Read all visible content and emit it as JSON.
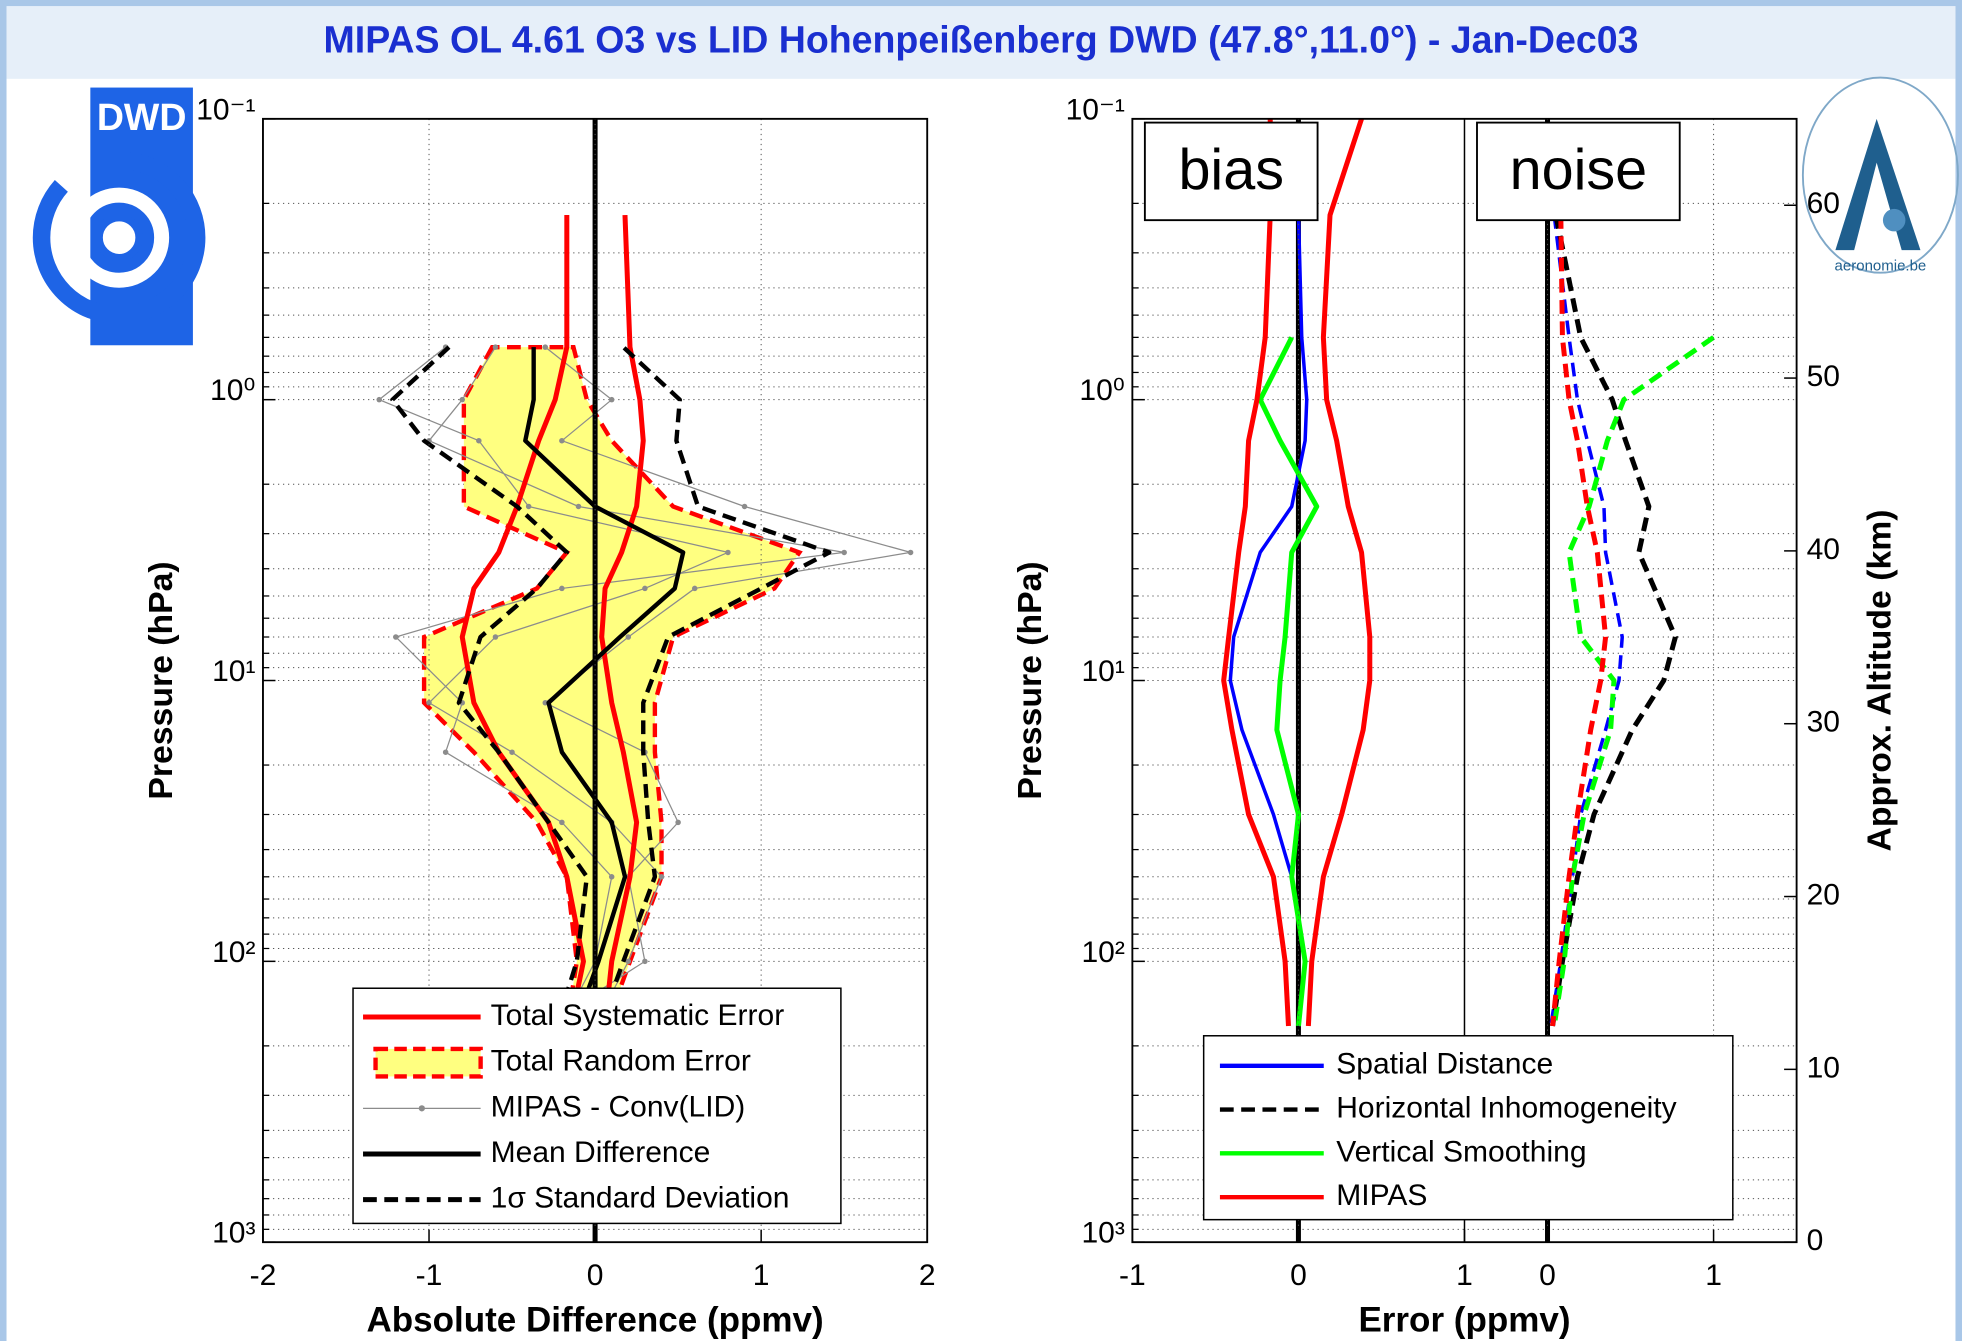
{
  "title": "MIPAS OL 4.61 O3 vs LID Hohenpeißenberg DWD (47.8°,11.0°) - Jan-Dec03",
  "logos": {
    "left": "DWD",
    "right": "aeronomie.be"
  },
  "chart_data": [
    {
      "type": "line",
      "xlabel": "Absolute Difference (ppmv)",
      "ylabel": "Pressure (hPa)",
      "ylog": true,
      "yreverse": true,
      "ylim": [
        0.1,
        1000
      ],
      "yticks": [
        {
          "value": 0.1,
          "label": "10⁻¹"
        },
        {
          "value": 1,
          "label": "10⁰"
        },
        {
          "value": 10,
          "label": "10¹"
        },
        {
          "value": 100,
          "label": "10²"
        },
        {
          "value": 1000,
          "label": "10³"
        }
      ],
      "yminorticks": [
        0.2,
        0.3,
        0.4,
        0.5,
        0.6,
        0.7,
        0.8,
        0.9,
        2,
        3,
        4,
        5,
        6,
        7,
        8,
        9,
        20,
        30,
        40,
        50,
        60,
        70,
        80,
        90,
        200,
        300,
        400,
        500,
        600,
        700,
        800,
        900
      ],
      "xlim": [
        -2,
        2
      ],
      "xticks": [
        -2,
        -1,
        0,
        1,
        2
      ],
      "grid": true,
      "reference_line": 0,
      "levels": [
        0.22,
        0.65,
        1,
        1.4,
        2.4,
        3.5,
        4.7,
        7,
        12,
        18,
        32,
        50,
        100,
        130
      ],
      "series": [
        {
          "name": "Total Systematic Error",
          "color": "#ff0000",
          "style": "solid",
          "values": [
            -0.17,
            -0.17,
            -0.24,
            -0.34,
            -0.47,
            -0.58,
            -0.73,
            -0.8,
            -0.73,
            -0.58,
            -0.28,
            -0.17,
            -0.07,
            -0.11
          ],
          "values_right": [
            0.18,
            0.21,
            0.27,
            0.29,
            0.25,
            0.16,
            0.06,
            0.04,
            0.1,
            0.17,
            0.25,
            0.21,
            0.1,
            0.08
          ]
        },
        {
          "name": "Total Random Error",
          "color": "#ff0000",
          "fill": "#ffff80",
          "style": "band",
          "values": [
            null,
            -0.62,
            -0.79,
            -0.79,
            -0.79,
            -0.17,
            -0.35,
            -1.03,
            -1.03,
            -0.73,
            -0.35,
            -0.17,
            -0.11,
            -0.14
          ],
          "values_right": [
            null,
            -0.13,
            -0.05,
            0.1,
            0.47,
            1.23,
            1.08,
            0.47,
            0.36,
            0.36,
            0.4,
            0.4,
            0.21,
            0.14
          ]
        },
        {
          "name": "MIPAS - Conv(LID)",
          "color": "#8c8c8c",
          "style": "profiles",
          "values": [
            [
              null,
              -0.9,
              -1.3,
              -0.7,
              -0.4,
              0.8,
              0.3,
              -0.6,
              -1.0,
              -0.5,
              0.1,
              0.4,
              0.2,
              0.1
            ],
            [
              null,
              -0.3,
              0.1,
              -0.2,
              0.9,
              1.9,
              0.6,
              0.2,
              -0.3,
              0.3,
              0.5,
              0.2,
              0.3,
              0.0
            ],
            [
              null,
              -0.6,
              -0.8,
              -1.0,
              -0.1,
              1.5,
              -0.2,
              -1.2,
              -0.8,
              -0.9,
              -0.2,
              0.1,
              0.0,
              -0.1
            ]
          ]
        },
        {
          "name": "Mean Difference",
          "color": "#000000",
          "style": "solid",
          "values": [
            null,
            -0.37,
            -0.37,
            -0.42,
            0.0,
            0.53,
            0.48,
            0.15,
            -0.28,
            -0.2,
            0.1,
            0.18,
            0.02,
            -0.05
          ]
        },
        {
          "name": "1σ Standard Deviation",
          "color": "#000000",
          "style": "dashed",
          "values": [
            null,
            -0.88,
            -1.22,
            -1.03,
            -0.47,
            -0.17,
            -0.35,
            -0.69,
            -0.82,
            -0.58,
            -0.28,
            -0.05,
            -0.11,
            -0.17
          ],
          "values_right": [
            null,
            0.17,
            0.51,
            0.49,
            0.62,
            1.41,
            1.0,
            0.44,
            0.29,
            0.29,
            0.32,
            0.36,
            0.17,
            0.1
          ]
        }
      ]
    },
    {
      "type": "line",
      "xlabel": "Error (ppmv)",
      "ylabel": "Pressure (hPa)",
      "y2label": "Approx. Altitude (km)",
      "ylog": true,
      "yreverse": true,
      "ylim": [
        0.1,
        1000
      ],
      "yticks": [
        {
          "value": 0.1,
          "label": "10⁻¹"
        },
        {
          "value": 1,
          "label": "10⁰"
        },
        {
          "value": 10,
          "label": "10¹"
        },
        {
          "value": 100,
          "label": "10²"
        },
        {
          "value": 1000,
          "label": "10³"
        }
      ],
      "yminorticks": [
        0.2,
        0.3,
        0.4,
        0.5,
        0.6,
        0.7,
        0.8,
        0.9,
        2,
        3,
        4,
        5,
        6,
        7,
        8,
        9,
        20,
        30,
        40,
        50,
        60,
        70,
        80,
        90,
        200,
        300,
        400,
        500,
        600,
        700,
        800,
        900
      ],
      "y2lim": [
        0,
        65
      ],
      "y2ticks": [
        0,
        10,
        20,
        30,
        40,
        50,
        60
      ],
      "grid": true,
      "levels": [
        0.1,
        0.22,
        0.6,
        1,
        1.4,
        2.4,
        3.5,
        7,
        10,
        15,
        30,
        50,
        100,
        170
      ],
      "legend_styles": [
        "solid",
        "dashed",
        "solid",
        "solid"
      ],
      "panels": [
        {
          "label": "bias",
          "xlim": [
            -1,
            1
          ],
          "xticks": [
            -1,
            0,
            1
          ],
          "reference_line": 0,
          "series": [
            {
              "name": "Spatial Distance",
              "color": "#0000ff",
              "style": "solid",
              "values": [
                null,
                0,
                0.02,
                0.05,
                0.04,
                -0.04,
                -0.23,
                -0.39,
                -0.41,
                -0.34,
                -0.15,
                -0.04,
                0.04,
                0
              ]
            },
            {
              "name": "Vertical Smoothing",
              "color": "#00ff00",
              "style": "solid",
              "values": [
                null,
                null,
                -0.04,
                -0.23,
                -0.11,
                0.11,
                -0.04,
                -0.08,
                -0.11,
                -0.13,
                0,
                -0.04,
                0.04,
                0
              ]
            },
            {
              "name": "MIPAS",
              "color": "#ff0000",
              "style": "solid",
              "values": [
                -0.17,
                -0.17,
                -0.2,
                -0.25,
                -0.3,
                -0.32,
                -0.36,
                -0.42,
                -0.45,
                -0.4,
                -0.3,
                -0.15,
                -0.08,
                -0.06
              ],
              "values_right": [
                0.38,
                0.19,
                0.15,
                0.17,
                0.23,
                0.3,
                0.38,
                0.43,
                0.43,
                0.39,
                0.26,
                0.15,
                0.08,
                0.06
              ]
            }
          ]
        },
        {
          "label": "noise",
          "xlim": [
            -0.5,
            1.5
          ],
          "xticks": [
            0,
            1
          ],
          "reference_line": 0,
          "series": [
            {
              "name": "Spatial Distance",
              "color": "#0000ff",
              "style": "dashed",
              "values": [
                null,
                0.04,
                0.13,
                0.18,
                0.24,
                0.34,
                0.35,
                0.45,
                0.43,
                0.35,
                0.2,
                0.15,
                0.08,
                0.02
              ]
            },
            {
              "name": "Horizontal Inhomogeneity",
              "color": "#000000",
              "style": "dashed",
              "values": [
                null,
                0.05,
                0.2,
                0.39,
                0.47,
                0.61,
                0.55,
                0.77,
                0.7,
                0.51,
                0.28,
                0.18,
                0.09,
                0.03
              ]
            },
            {
              "name": "Vertical Smoothing",
              "color": "#00ff00",
              "style": "dashed",
              "values": [
                null,
                null,
                1.0,
                0.46,
                0.36,
                0.25,
                0.13,
                0.2,
                0.4,
                0.38,
                0.22,
                0.15,
                0.1,
                0.04
              ]
            },
            {
              "name": "MIPAS",
              "color": "#ff0000",
              "style": "dashed",
              "values": [
                null,
                0.08,
                0.09,
                0.13,
                0.18,
                0.24,
                0.3,
                0.35,
                0.32,
                0.26,
                0.18,
                0.13,
                0.07,
                0.03
              ]
            }
          ]
        }
      ]
    }
  ]
}
